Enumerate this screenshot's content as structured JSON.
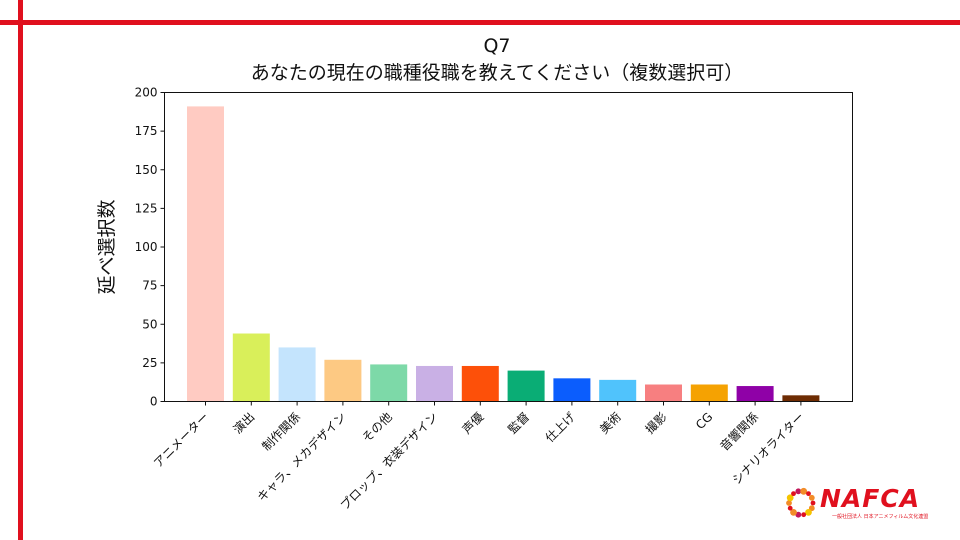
{
  "brand": {
    "logo_text": "NAFCA",
    "logo_subtitle": "一般社団法人 日本アニメフィルム文化連盟",
    "accent_color": "#e0101e"
  },
  "chart_data": {
    "type": "bar",
    "title": "Q7",
    "subtitle": "あなたの現在の職種役職を教えてください（複数選択可）",
    "xlabel": "",
    "ylabel": "延べ選択数",
    "ylim": [
      0,
      200
    ],
    "yticks": [
      0,
      25,
      50,
      75,
      100,
      125,
      150,
      175,
      200
    ],
    "grid": false,
    "categories": [
      "アニメーター",
      "演出",
      "制作関係",
      "キャラ、メカデザイン",
      "その他",
      "プロップ、衣装デザイン",
      "声優",
      "監督",
      "仕上げ",
      "美術",
      "撮影",
      "CG",
      "音響関係",
      "シナリオライター"
    ],
    "values": [
      191,
      44,
      35,
      27,
      24,
      23,
      23,
      20,
      15,
      14,
      11,
      11,
      10,
      4
    ],
    "colors": [
      "#ffcbc2",
      "#d9ef5a",
      "#c4e4fd",
      "#fdc983",
      "#7dd9a8",
      "#c9b0e5",
      "#fd5009",
      "#0aad75",
      "#0b5dfd",
      "#50c3fc",
      "#f77f80",
      "#f5a202",
      "#8f01a7",
      "#6e2c03"
    ]
  }
}
